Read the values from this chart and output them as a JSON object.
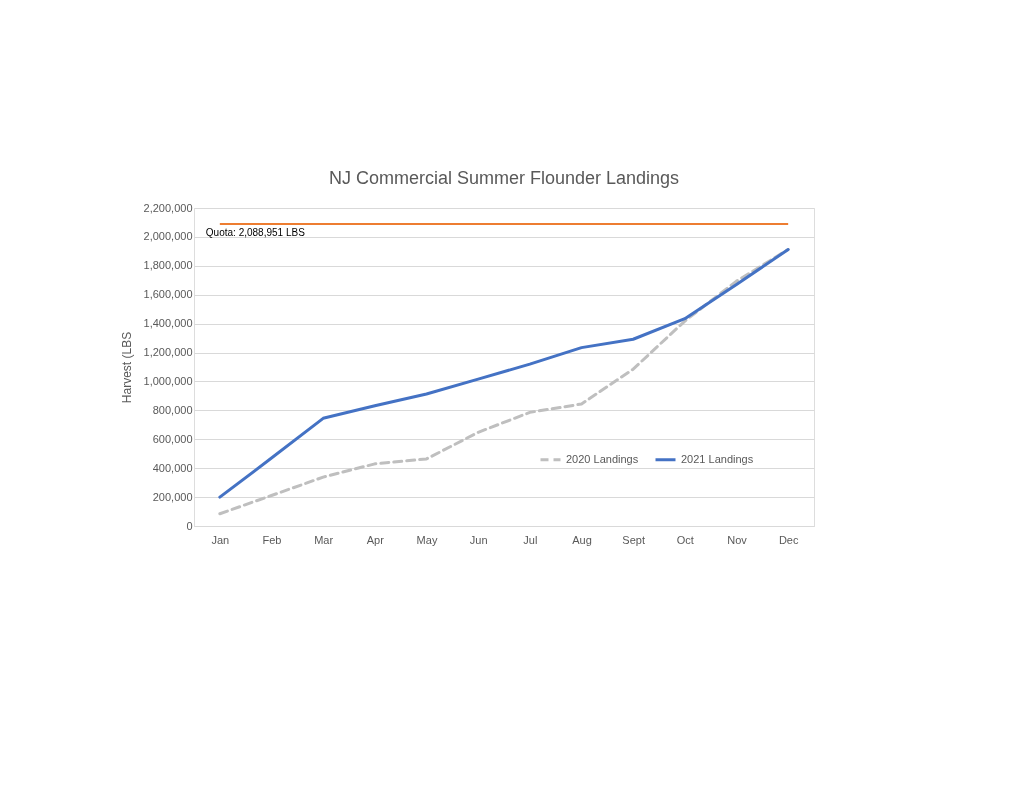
{
  "chart_data": {
    "type": "line",
    "title": "NJ Commercial Summer Flounder Landings",
    "ylabel": "Harvest (LBS",
    "categories": [
      "Jan",
      "Feb",
      "Mar",
      "Apr",
      "May",
      "Jun",
      "Jul",
      "Aug",
      "Sept",
      "Oct",
      "Nov",
      "Dec"
    ],
    "series": [
      {
        "name": "2020 Landings",
        "color": "#bfbfbf",
        "line_style": "dashed",
        "values": [
          85000,
          211000,
          338000,
          430000,
          464000,
          648000,
          786000,
          844000,
          1085000,
          1418000,
          1694000,
          1913000
        ]
      },
      {
        "name": "2021 Landings",
        "color": "#4472c4",
        "line_style": "solid",
        "values": [
          200000,
          470000,
          745000,
          832000,
          913000,
          1016000,
          1120000,
          1234000,
          1292000,
          1434000,
          1671000,
          1913000
        ]
      }
    ],
    "ylim": [
      0,
      2200000
    ],
    "yticks": [
      0,
      {
        "value": 200000,
        "label": "200,000"
      },
      {
        "value": 400000,
        "label": "400,000"
      },
      {
        "value": 600000,
        "label": "600,000"
      },
      {
        "value": 800000,
        "label": "800,000"
      },
      {
        "value": 1000000,
        "label": "1,000,000"
      },
      {
        "value": 1200000,
        "label": "1,200,000"
      },
      {
        "value": 1400000,
        "label": "1,400,000"
      },
      {
        "value": 1600000,
        "label": "1,600,000"
      },
      {
        "value": 1800000,
        "label": "1,800,000"
      },
      {
        "value": 2000000,
        "label": "2,000,000"
      },
      {
        "value": 2200000,
        "label": "2,200,000"
      }
    ],
    "grid": "y",
    "legend": "bottom right",
    "ref_lines": [
      {
        "axis": "y",
        "value": 2088951,
        "label": "Quota: 2,088,951 LBS",
        "color": "#ed7d31",
        "line_style": "solid"
      }
    ]
  }
}
